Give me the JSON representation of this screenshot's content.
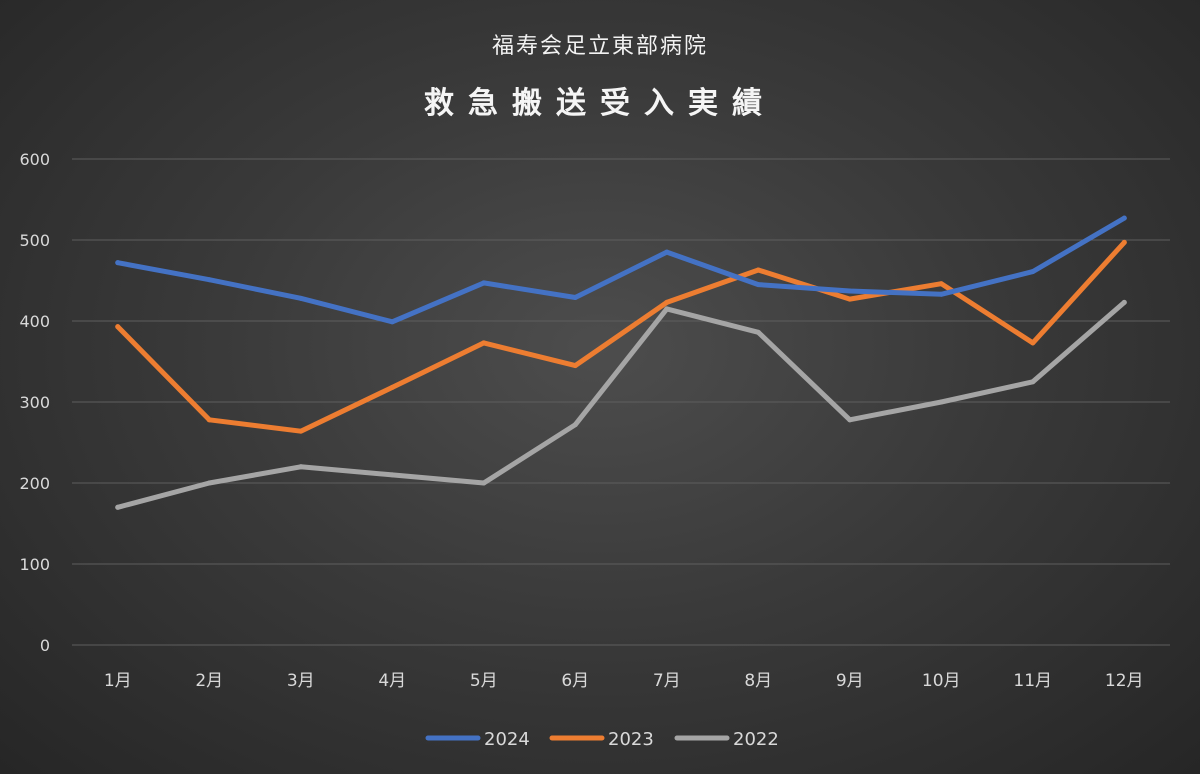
{
  "chart_data": {
    "type": "line",
    "subtitle": "福寿会足立東部病院",
    "title": "救急搬送受入実績",
    "xlabel": "",
    "ylabel": "",
    "categories": [
      "1月",
      "2月",
      "3月",
      "4月",
      "5月",
      "6月",
      "7月",
      "8月",
      "9月",
      "10月",
      "11月",
      "12月"
    ],
    "ylim": [
      0,
      600
    ],
    "yticks": [
      0,
      100,
      200,
      300,
      400,
      500,
      600
    ],
    "grid": true,
    "legend_position": "bottom",
    "series": [
      {
        "name": "2024",
        "color": "#4472c4",
        "values": [
          472,
          451,
          428,
          399,
          447,
          429,
          485,
          445,
          437,
          433,
          461,
          527
        ]
      },
      {
        "name": "2023",
        "color": "#ed7d31",
        "values": [
          393,
          278,
          264,
          318,
          373,
          345,
          423,
          463,
          427,
          446,
          373,
          497
        ]
      },
      {
        "name": "2022",
        "color": "#a5a5a5",
        "values": [
          170,
          200,
          220,
          210,
          200,
          272,
          415,
          386,
          278,
          300,
          325,
          423
        ]
      }
    ]
  }
}
